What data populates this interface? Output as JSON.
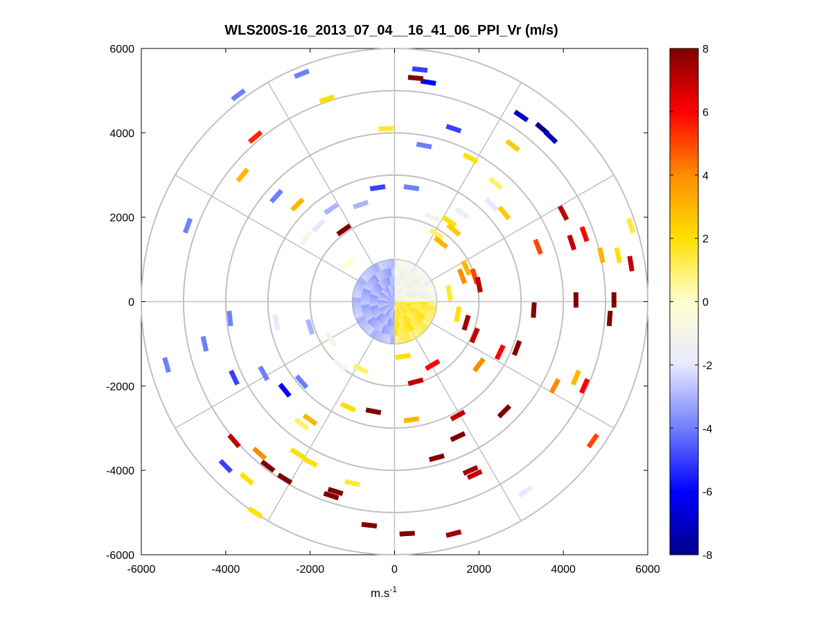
{
  "chart_data": {
    "type": "heatmap",
    "subtype": "polar-ppi",
    "title": "WLS200S-16_2013_07_04__16_41_06_PPI_Vr (m/s)",
    "xlabel": "m.s",
    "xlabel_superscript": "-1",
    "ylabel": "",
    "xlim": [
      -6000,
      6000
    ],
    "ylim": [
      -6000,
      6000
    ],
    "xticks": [
      -6000,
      -4000,
      -2000,
      0,
      2000,
      4000,
      6000
    ],
    "yticks": [
      6000,
      4000,
      2000,
      0,
      -2000,
      -4000,
      -6000
    ],
    "xtick_labels": [
      "-6000",
      "-4000",
      "-2000",
      "0",
      "2000",
      "4000",
      "6000"
    ],
    "ytick_labels": [
      "6000",
      "4000",
      "2000",
      "0",
      "-2000",
      "-4000",
      "-6000"
    ],
    "polar_grid": {
      "ring_radii": [
        1000,
        2000,
        3000,
        4000,
        5000,
        6000
      ],
      "spoke_angles_deg": [
        0,
        30,
        60,
        90,
        120,
        150,
        180,
        210,
        240,
        270,
        300,
        330
      ]
    },
    "colorbar": {
      "range": [
        -8,
        8
      ],
      "ticks": [
        8,
        6,
        4,
        2,
        0,
        -2,
        -4,
        -6,
        -8
      ],
      "tick_labels": [
        "8",
        "6",
        "4",
        "2",
        "0",
        "-2",
        "-4",
        "-6",
        "-8"
      ],
      "colors": [
        "#00008b",
        "#0000ff",
        "#6f7fff",
        "#e8e8ff",
        "#ffffd0",
        "#ffe000",
        "#ff8c00",
        "#ff0000",
        "#800000"
      ]
    },
    "near_field": {
      "max_range": 1000,
      "sectors": [
        {
          "from_deg": 90,
          "to_deg": 270,
          "value": -3.0
        },
        {
          "from_deg": 270,
          "to_deg": 360,
          "value": 1.5
        },
        {
          "from_deg": 0,
          "to_deg": 90,
          "value": -1.0
        }
      ]
    },
    "points": [
      [
        -3300,
        3900,
        5.5
      ],
      [
        -2300,
        2300,
        3
      ],
      [
        -2100,
        1500,
        -1
      ],
      [
        -1500,
        2200,
        -3
      ],
      [
        -2800,
        2500,
        -4
      ],
      [
        -3700,
        4900,
        -4
      ],
      [
        -2200,
        5400,
        -4
      ],
      [
        -1600,
        4800,
        2
      ],
      [
        -3600,
        3000,
        3
      ],
      [
        -4900,
        1800,
        -4
      ],
      [
        -1100,
        900,
        0
      ],
      [
        -200,
        4100,
        1.5
      ],
      [
        800,
        5200,
        -6
      ],
      [
        600,
        5500,
        -5
      ],
      [
        500,
        5300,
        8
      ],
      [
        700,
        3700,
        -4
      ],
      [
        1400,
        4100,
        -5
      ],
      [
        1800,
        3400,
        2
      ],
      [
        2800,
        3700,
        2.5
      ],
      [
        3000,
        4400,
        -7
      ],
      [
        3500,
        4100,
        -8
      ],
      [
        3700,
        3900,
        -7
      ],
      [
        2400,
        2800,
        1
      ],
      [
        2300,
        2300,
        -2
      ],
      [
        2600,
        2100,
        2.5
      ],
      [
        4000,
        2100,
        7
      ],
      [
        4500,
        1600,
        6
      ],
      [
        3400,
        1300,
        5
      ],
      [
        4200,
        1400,
        7
      ],
      [
        4900,
        1100,
        3
      ],
      [
        5300,
        1100,
        2
      ],
      [
        5600,
        1800,
        1.5
      ],
      [
        5600,
        900,
        7
      ],
      [
        4300,
        40,
        8
      ],
      [
        5200,
        40,
        8
      ],
      [
        3300,
        -200,
        8
      ],
      [
        5100,
        -400,
        8
      ],
      [
        4300,
        -1800,
        3
      ],
      [
        4500,
        -2000,
        6
      ],
      [
        4700,
        -3300,
        5
      ],
      [
        3800,
        -2000,
        4
      ],
      [
        2900,
        -1100,
        8
      ],
      [
        2600,
        -2600,
        8
      ],
      [
        3100,
        -4500,
        -2
      ],
      [
        1900,
        -4100,
        7
      ],
      [
        1800,
        -4000,
        7.5
      ],
      [
        1000,
        -3700,
        8
      ],
      [
        1500,
        -3200,
        8
      ],
      [
        1400,
        -5500,
        7.5
      ],
      [
        300,
        -5500,
        8
      ],
      [
        -600,
        -5300,
        8
      ],
      [
        -1500,
        -4600,
        8
      ],
      [
        -1400,
        -4500,
        8
      ],
      [
        -1000,
        -4300,
        1.5
      ],
      [
        -2000,
        -3800,
        2
      ],
      [
        -2300,
        -3600,
        2
      ],
      [
        -2600,
        -4200,
        8
      ],
      [
        -3000,
        -3900,
        8
      ],
      [
        -3800,
        -3300,
        7
      ],
      [
        -3200,
        -3600,
        4
      ],
      [
        -4000,
        -3900,
        -5
      ],
      [
        -3500,
        -4200,
        2
      ],
      [
        -3300,
        -5000,
        2
      ],
      [
        -2000,
        -2800,
        3
      ],
      [
        -2200,
        -2900,
        1
      ],
      [
        -2600,
        -2100,
        -6
      ],
      [
        -2200,
        -1900,
        -4
      ],
      [
        -3100,
        -1700,
        -4
      ],
      [
        -3800,
        -1800,
        -5
      ],
      [
        -5400,
        -1500,
        -4
      ],
      [
        -2000,
        -600,
        -3
      ],
      [
        -2800,
        -500,
        -2
      ],
      [
        -4500,
        -1000,
        -4
      ],
      [
        -3900,
        -400,
        -4
      ],
      [
        -1100,
        -2500,
        2
      ],
      [
        -500,
        -2600,
        8
      ],
      [
        400,
        -2800,
        3
      ],
      [
        1500,
        -2700,
        7
      ],
      [
        2000,
        -1500,
        4
      ],
      [
        2500,
        -1200,
        6
      ],
      [
        1900,
        -800,
        7
      ],
      [
        1700,
        -500,
        7.5
      ],
      [
        1500,
        -300,
        2
      ],
      [
        1300,
        200,
        1.5
      ],
      [
        1600,
        600,
        4
      ],
      [
        1900,
        600,
        5
      ],
      [
        1700,
        800,
        3
      ],
      [
        2000,
        400,
        7
      ],
      [
        1000,
        1600,
        1
      ],
      [
        1300,
        1900,
        2
      ],
      [
        1400,
        1700,
        2.5
      ],
      [
        1100,
        1400,
        3
      ],
      [
        900,
        2000,
        -1
      ],
      [
        1600,
        2100,
        -1.5
      ],
      [
        400,
        2700,
        -4
      ],
      [
        -400,
        2700,
        -5
      ],
      [
        -800,
        2300,
        -3
      ],
      [
        -1200,
        1700,
        8
      ],
      [
        -1800,
        1800,
        -2
      ],
      [
        -1500,
        -900,
        -1
      ],
      [
        -1300,
        -1500,
        -1
      ],
      [
        -800,
        -1600,
        1
      ],
      [
        500,
        -1900,
        7
      ],
      [
        900,
        -1500,
        6
      ],
      [
        200,
        -1300,
        2
      ]
    ]
  }
}
